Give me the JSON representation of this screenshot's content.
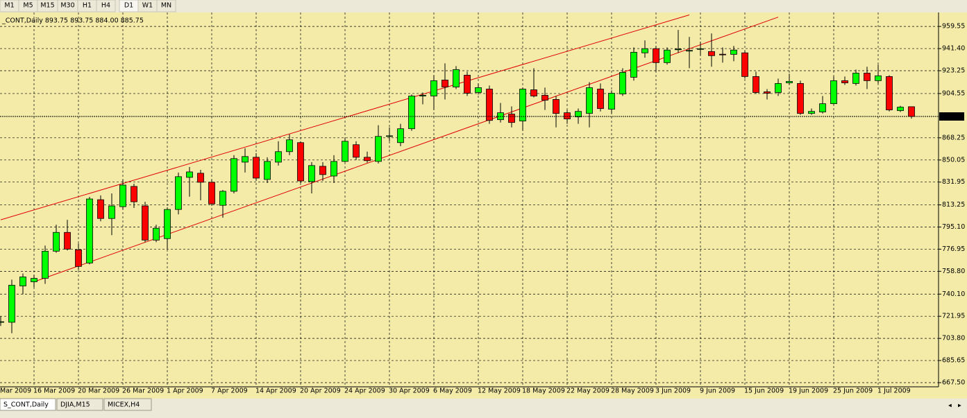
{
  "toolbar": [
    "M1",
    "M5",
    "M15",
    "M30",
    "H1",
    "H4",
    "D1",
    "W1",
    "MN"
  ],
  "tabs": [
    "S_CONT,Daily",
    "DJIA,M15",
    "MICEX,H4"
  ],
  "chart_data": {
    "type": "candlestick",
    "header": "_CONT,Daily  893.75 893.75 884.00 885.75",
    "up_color": "#00ff00",
    "down_color": "#ff0000",
    "grid": true,
    "ylim": [
      664.1,
      971.0
    ],
    "yticks": [
      959.55,
      {
        "value": 941.4,
        "label": "941.40"
      },
      923.25,
      904.55,
      868.25,
      850.05,
      831.95,
      813.25,
      {
        "value": 795.1,
        "label": "795.10"
      },
      776.95,
      {
        "value": 758.8,
        "label": "758.80"
      },
      {
        "value": 740.1,
        "label": "740.10"
      },
      721.95,
      {
        "value": 703.8,
        "label": "703.80"
      },
      685.65,
      {
        "value": 667.5,
        "label": "667.50"
      }
    ],
    "last_price": 885.75,
    "trend_lines": [
      {
        "color": "#e00000",
        "from": [
          0,
          801.0
        ],
        "to": [
          62,
          969.0
        ]
      },
      {
        "color": "#e00000",
        "from": [
          3,
          750.2
        ],
        "to": [
          70,
          967.2
        ]
      }
    ],
    "categories": [
      "Mar 2009",
      null,
      null,
      "16 Mar 2009",
      null,
      null,
      null,
      "20 Mar 2009",
      null,
      null,
      null,
      "26 Mar 2009",
      null,
      null,
      null,
      "1 Apr 2009",
      null,
      null,
      null,
      "7 Apr 2009",
      null,
      null,
      null,
      "14 Apr 2009",
      null,
      null,
      null,
      "20 Apr 2009",
      null,
      null,
      null,
      "24 Apr 2009",
      null,
      null,
      null,
      "30 Apr 2009",
      null,
      null,
      null,
      "6 May 2009",
      null,
      null,
      null,
      "12 May 2009",
      null,
      null,
      null,
      "18 May 2009",
      null,
      null,
      null,
      "22 May 2009",
      null,
      null,
      null,
      "28 May 2009",
      null,
      null,
      null,
      "3 Jun 2009",
      null,
      null,
      null,
      "9 Jun 2009",
      null,
      null,
      null,
      "15 Jun 2009",
      null,
      null,
      null,
      "19 Jun 2009",
      null,
      null,
      null,
      "25 Jun 2009",
      null,
      null,
      null,
      "1 Jul 2009",
      null,
      null,
      null
    ],
    "open": [
      717,
      717,
      746.8,
      750.2,
      753.1,
      775.3,
      790.7,
      776.4,
      765.6,
      817.5,
      802.1,
      811.8,
      828.4,
      812.4,
      784.4,
      785.6,
      809.5,
      835.8,
      839.2,
      831.8,
      812.9,
      824.4,
      848.3,
      852.3,
      834.1,
      848.3,
      856.9,
      864.3,
      832.4,
      844.9,
      836.9,
      848.9,
      862.6,
      852.3,
      848.9,
      869.4,
      864.3,
      875.7,
      902.5,
      902.5,
      915.6,
      909.9,
      919.6,
      905.4,
      908.2,
      883.1,
      887.7,
      882,
      907.6,
      903.1,
      899.7,
      888.8,
      885.4,
      888.2,
      908.2,
      891.7,
      904.2,
      917.9,
      937.9,
      941.3,
      929.9,
      940.7,
      939.6,
      941.2,
      939,
      936.8,
      936.7,
      937.9,
      918.5,
      906,
      905.4,
      913.3,
      912.8,
      888.2,
      889.4,
      896.2,
      915.1,
      912.8,
      921.3,
      915.1,
      918.5,
      890.5,
      893.75
    ],
    "high": [
      722,
      752,
      757,
      756,
      779.9,
      797,
      801,
      781.6,
      819.8,
      821,
      822.7,
      834,
      830.6,
      815.8,
      797,
      811.2,
      839.8,
      844.3,
      842,
      834,
      825.5,
      854,
      859.7,
      855.7,
      852.3,
      865.4,
      871.1,
      865.4,
      848.3,
      848.3,
      854,
      868.3,
      865.4,
      856.9,
      878.6,
      876.8,
      879.7,
      903.7,
      905.4,
      919.6,
      929.3,
      927,
      922.5,
      912.8,
      911.1,
      896.8,
      894,
      909.4,
      925.3,
      909.4,
      902.5,
      891.1,
      892.3,
      913.9,
      912.8,
      907.1,
      925.3,
      942.4,
      948.1,
      943.6,
      942.4,
      956.7,
      951,
      947,
      953.8,
      942.4,
      943.6,
      939.6,
      922.5,
      908.2,
      916.8,
      920.8,
      915.1,
      892.3,
      902.5,
      918.5,
      918.5,
      924.2,
      926.5,
      928.2,
      919.6,
      894.5,
      893.75
    ],
    "low": [
      714,
      708,
      740,
      745.7,
      748.5,
      774,
      775.9,
      759.9,
      764.5,
      799.8,
      788.4,
      809.5,
      810.7,
      782.7,
      782.7,
      777,
      805.5,
      820,
      817,
      812.4,
      802.7,
      822.7,
      839.8,
      832.9,
      831.2,
      845.5,
      854,
      831.2,
      822.7,
      832.9,
      831.2,
      848.3,
      850,
      847.8,
      847.2,
      865.4,
      861.4,
      874,
      895.7,
      891.1,
      899.7,
      908.2,
      902.5,
      903.7,
      879.7,
      880.8,
      876.8,
      874,
      901.4,
      891.1,
      876.8,
      879.7,
      879.7,
      876.8,
      889.9,
      888.2,
      902.5,
      915.1,
      933.9,
      922.5,
      928.2,
      937.9,
      925.3,
      935.6,
      926.5,
      929.9,
      931,
      916.8,
      904.2,
      899.7,
      902.5,
      911.6,
      887.1,
      887.1,
      888.2,
      895.7,
      911.6,
      911.1,
      908.2,
      912.8,
      889.9,
      889.4,
      884
    ],
    "close": [
      717.5,
      747.4,
      754.2,
      753,
      775.3,
      790.7,
      777,
      762.8,
      818.1,
      802.1,
      812.4,
      829.5,
      815.8,
      784.4,
      794.1,
      809.5,
      836.4,
      840.3,
      831.8,
      814.1,
      824.4,
      851.2,
      852.9,
      835.2,
      848.9,
      856.9,
      866.6,
      832.9,
      845.5,
      838.1,
      848.9,
      865.4,
      852.3,
      849.5,
      869.4,
      869.9,
      875.7,
      902.5,
      903.1,
      915.1,
      909.9,
      924.2,
      904.8,
      909.4,
      882.5,
      888.8,
      880.8,
      908.2,
      902.5,
      899.1,
      888.2,
      883.7,
      889.9,
      909.4,
      892.2,
      904.8,
      921.9,
      938.4,
      941.3,
      929.9,
      940.2,
      941,
      939.9,
      941.3,
      935.6,
      936.6,
      940.2,
      918.5,
      905.4,
      904.8,
      912.8,
      914.5,
      888.2,
      889.9,
      896.2,
      915.1,
      913.3,
      921.3,
      915.1,
      919.1,
      891.1,
      893.4,
      885.75
    ]
  }
}
